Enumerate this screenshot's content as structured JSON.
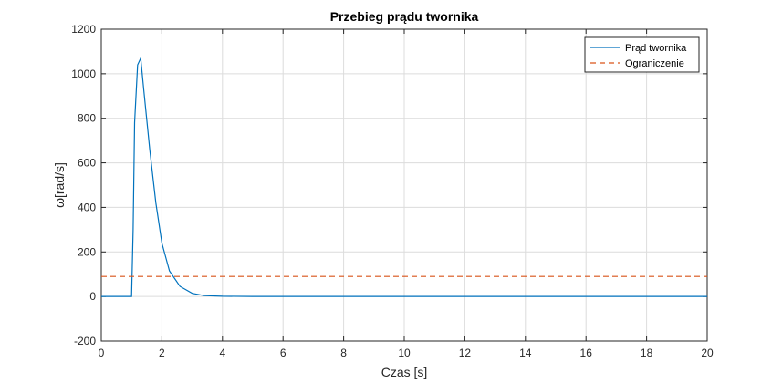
{
  "chart_data": {
    "type": "line",
    "title": "Przebieg prądu twornika",
    "xlabel": "Czas [s]",
    "ylabel": "ω[rad/s]",
    "xlim": [
      0,
      20
    ],
    "ylim": [
      -200,
      1200
    ],
    "xticks": [
      0,
      2,
      4,
      6,
      8,
      10,
      12,
      14,
      16,
      18,
      20
    ],
    "yticks": [
      -200,
      0,
      200,
      400,
      600,
      800,
      1000,
      1200
    ],
    "grid": true,
    "legend_position": "top-right",
    "series": [
      {
        "name": "Prąd twornika",
        "color": "#0072BD",
        "style": "solid",
        "x": [
          0,
          1.0,
          1.05,
          1.1,
          1.2,
          1.3,
          1.4,
          1.6,
          1.8,
          2.0,
          2.25,
          2.6,
          3.0,
          3.4,
          4.0,
          5.0,
          20
        ],
        "y": [
          0,
          0,
          300,
          780,
          1040,
          1070,
          930,
          660,
          420,
          240,
          115,
          45,
          14,
          4,
          1,
          0,
          0
        ]
      },
      {
        "name": "Ograniczenie",
        "color": "#D95319",
        "style": "dashed",
        "x": [
          0,
          20
        ],
        "y": [
          90,
          90
        ]
      }
    ]
  }
}
